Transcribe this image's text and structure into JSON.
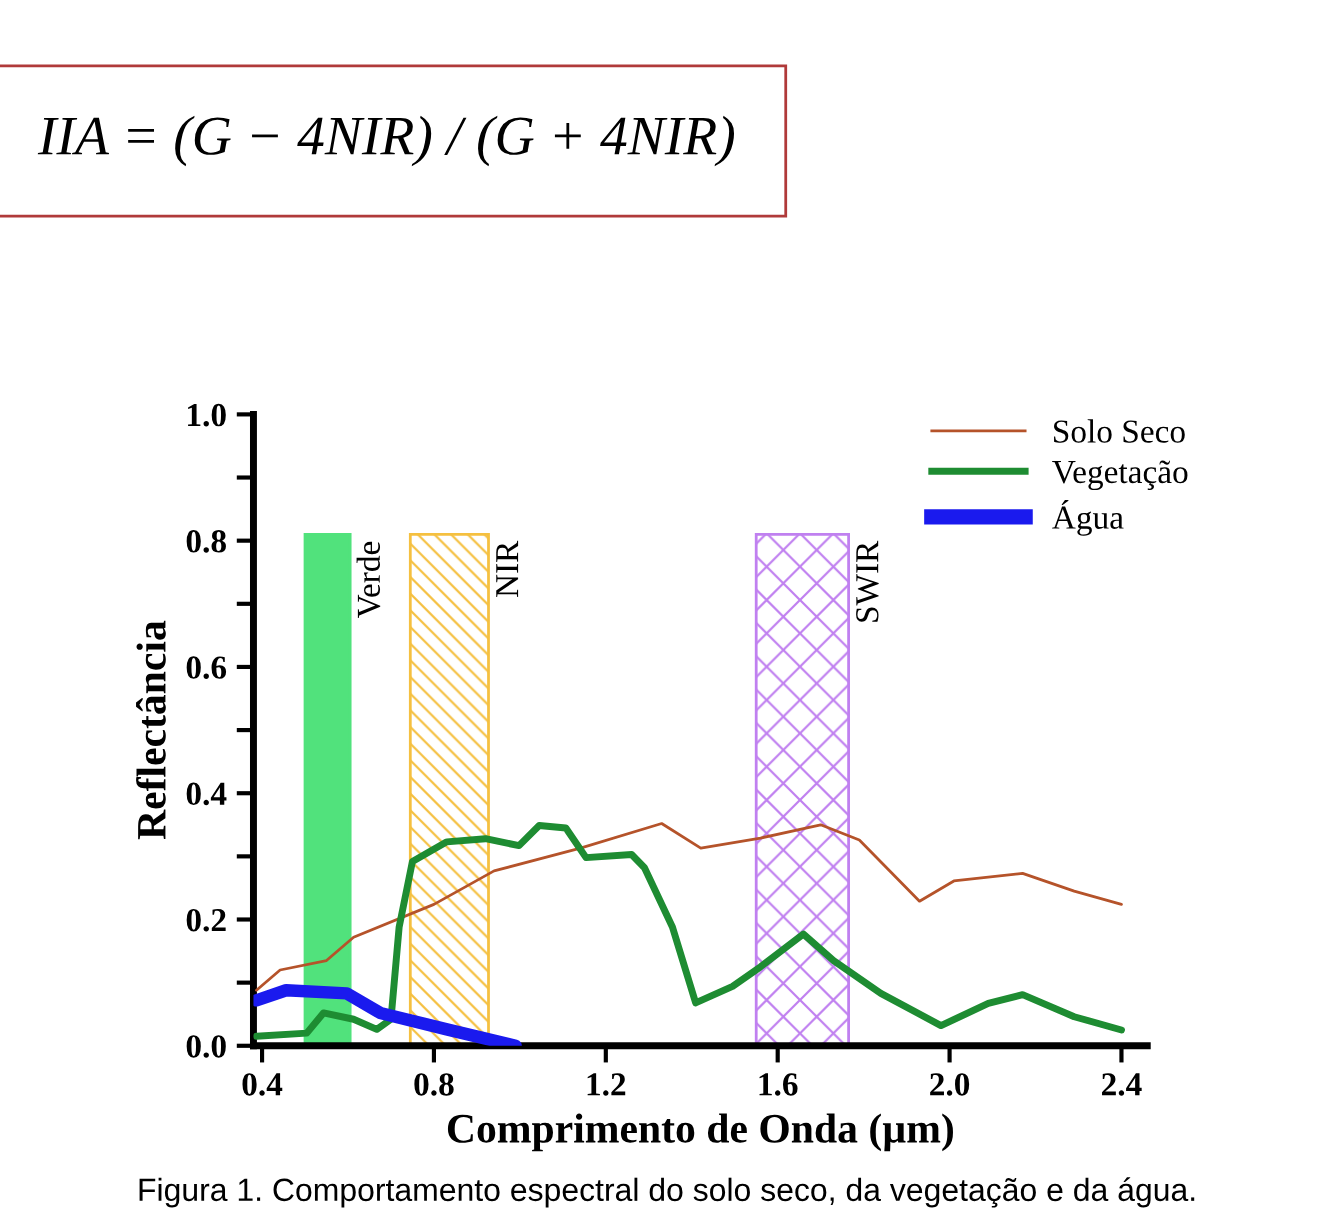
{
  "chart_data": {
    "type": "line",
    "xlabel": "Comprimento de Onda (µm)",
    "ylabel": "Reflectância",
    "annotations": [
      "IIA = (G − 4NIR) / (G + 4NIR)",
      "Figura 1. Comportamento espectral do solo seco, da vegetação e da água."
    ],
    "series": [
      {
        "name": "Solo Seco",
        "color": "#b5532a",
        "x": [
          0.387,
          0.442,
          0.55,
          0.613,
          0.8,
          0.94,
          1.141,
          1.33,
          1.421,
          1.56,
          1.7,
          1.79,
          1.93,
          2.01,
          2.17,
          2.29,
          2.4
        ],
        "values": [
          0.088,
          0.12,
          0.135,
          0.172,
          0.224,
          0.277,
          0.313,
          0.352,
          0.313,
          0.329,
          0.35,
          0.326,
          0.229,
          0.261,
          0.273,
          0.245,
          0.224
        ]
      },
      {
        "name": "Vegetação",
        "color": "#1e8c32",
        "x": [
          0.387,
          0.504,
          0.543,
          0.613,
          0.667,
          0.7,
          0.719,
          0.75,
          0.83,
          0.92,
          0.998,
          1.045,
          1.107,
          1.154,
          1.26,
          1.29,
          1.355,
          1.409,
          1.495,
          1.56,
          1.66,
          1.73,
          1.84,
          1.98,
          2.09,
          2.17,
          2.29,
          2.4
        ],
        "values": [
          0.015,
          0.02,
          0.052,
          0.042,
          0.026,
          0.042,
          0.188,
          0.292,
          0.323,
          0.328,
          0.317,
          0.349,
          0.345,
          0.298,
          0.303,
          0.282,
          0.188,
          0.068,
          0.094,
          0.125,
          0.177,
          0.135,
          0.083,
          0.032,
          0.067,
          0.081,
          0.046,
          0.025
        ]
      },
      {
        "name": "Água",
        "color": "#1a1aee",
        "x": [
          0.387,
          0.456,
          0.597,
          0.675,
          0.83,
          0.99
        ],
        "values": [
          0.072,
          0.088,
          0.083,
          0.052,
          0.026,
          0.0
        ]
      }
    ],
    "bands": [
      {
        "axis": "x",
        "from": 0.5,
        "to": 0.605,
        "label": "Verde",
        "color": "#33dd66"
      },
      {
        "axis": "x",
        "from": 0.745,
        "to": 0.927,
        "label": "NIR",
        "color": "#f5c040"
      },
      {
        "axis": "x",
        "from": 1.55,
        "to": 1.765,
        "label": "SWIR",
        "color": "#c080f0"
      }
    ],
    "xlim": [
      0.38,
      2.46
    ],
    "xticks": [
      0.4,
      0.8,
      1.2,
      1.6,
      {
        "value": 2.0,
        "label": "2.0"
      },
      2.4
    ],
    "ylim": [
      0,
      1.0
    ],
    "yticks": [
      {
        "value": 0,
        "label": "0.0"
      },
      {
        "value": 0.1,
        "label": null
      },
      0.2,
      {
        "value": 0.3,
        "label": null
      },
      0.4,
      {
        "value": 0.5,
        "label": null
      },
      0.6,
      {
        "value": 0.7,
        "label": null
      },
      0.8,
      {
        "value": 0.9,
        "label": null
      },
      {
        "value": 1.0,
        "label": "1.0"
      }
    ],
    "grid": false,
    "legend": "top right"
  }
}
